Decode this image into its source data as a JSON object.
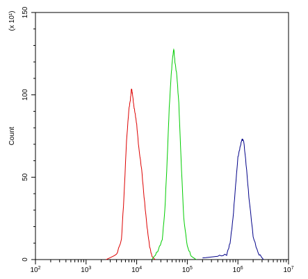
{
  "chart_data": {
    "type": "line",
    "title": "",
    "xlabel": "",
    "ylabel": "Count",
    "y_multiplier": "(x 10¹)",
    "x_scale": "log",
    "xlim": [
      100,
      10000000
    ],
    "ylim": [
      0,
      150
    ],
    "grid": false,
    "legend": "none",
    "x_ticks": [
      {
        "value": 100,
        "base": "10",
        "exp": "2"
      },
      {
        "value": 1000,
        "base": "10",
        "exp": "3"
      },
      {
        "value": 10000,
        "base": "10",
        "exp": "4"
      },
      {
        "value": 100000,
        "base": "10",
        "exp": "5"
      },
      {
        "value": 1000000,
        "base": "10",
        "exp": "6"
      },
      {
        "value": 10000000,
        "base": "10",
        "exp": "7"
      }
    ],
    "y_ticks": [
      {
        "value": 0,
        "label": "0"
      },
      {
        "value": 50,
        "label": "50"
      },
      {
        "value": 100,
        "label": "100"
      },
      {
        "value": 150,
        "label": "150"
      }
    ],
    "series": [
      {
        "color": "#dd0000",
        "x": [
          2500,
          4000,
          5000,
          5600,
          6300,
          7000,
          7500,
          7900,
          8300,
          8800,
          9400,
          10000,
          11000,
          12500,
          14000,
          16000,
          18000,
          20000,
          23000
        ],
        "values": [
          0,
          3,
          12,
          38,
          72,
          91,
          97,
          104,
          100,
          93,
          88,
          82,
          68,
          55,
          38,
          20,
          8,
          2,
          0
        ]
      },
      {
        "color": "#00cc00",
        "x": [
          20000,
          26000,
          32000,
          36000,
          40000,
          44000,
          48000,
          51000,
          54000,
          57000,
          62000,
          68000,
          75000,
          85000,
          100000,
          120000,
          150000
        ],
        "values": [
          0,
          5,
          12,
          30,
          60,
          92,
          112,
          122,
          128,
          120,
          112,
          95,
          62,
          25,
          8,
          2,
          0
        ]
      },
      {
        "color": "#000088",
        "x": [
          200000,
          400000,
          600000,
          700000,
          800000,
          900000,
          1000000,
          1100000,
          1200000,
          1300000,
          1450000,
          1650000,
          2000000,
          2500000,
          3200000
        ],
        "values": [
          1,
          2,
          3,
          10,
          25,
          45,
          62,
          68,
          73,
          72,
          58,
          38,
          14,
          4,
          0
        ]
      }
    ]
  }
}
